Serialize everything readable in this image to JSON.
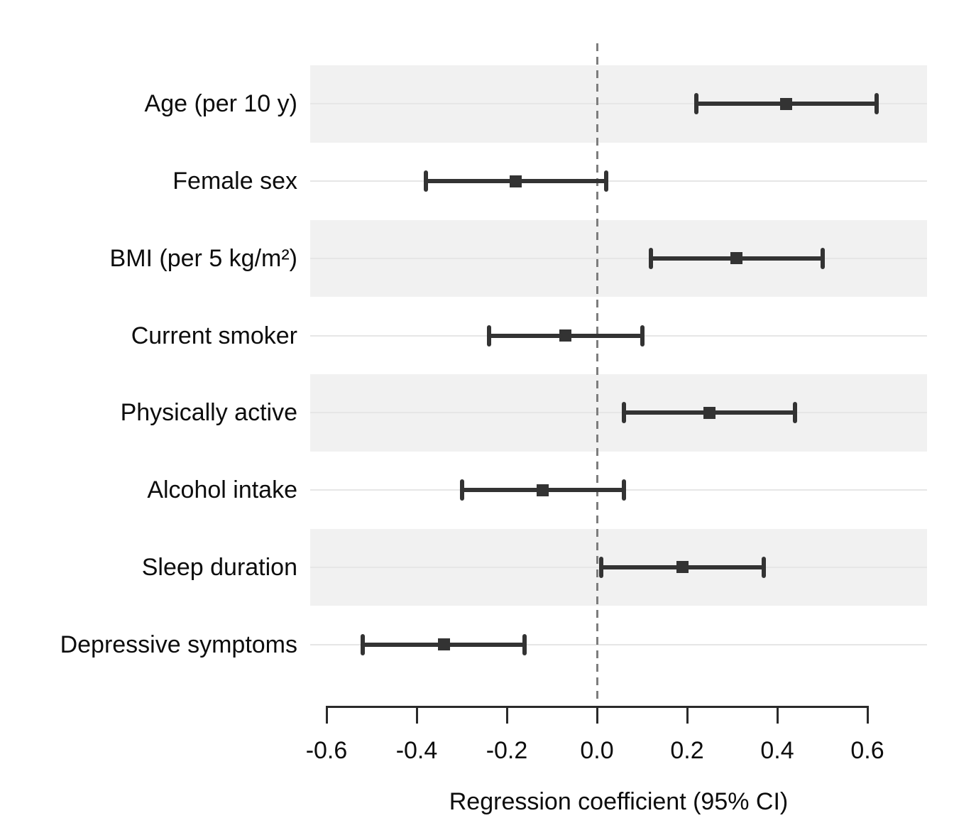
{
  "chart_data": {
    "type": "scatter",
    "variant": "forest_plot",
    "title": "",
    "xlabel": "Regression coefficient (95% CI)",
    "ylabel": "",
    "xlim": [
      -0.64,
      0.73
    ],
    "x_ticks": [
      -0.6,
      -0.4,
      -0.2,
      0.0,
      0.2,
      0.4,
      0.6
    ],
    "x_tick_labels": [
      "-0.6",
      "-0.4",
      "-0.2",
      "0.0",
      "0.2",
      "0.4",
      "0.6"
    ],
    "reference_line_x": 0,
    "grid": "horizontal-row-lines",
    "legend_position": "none",
    "marker_shape": "square",
    "rows": [
      {
        "label": "Age (per 10 y)",
        "estimate": 0.42,
        "ci_lower": 0.22,
        "ci_upper": 0.62,
        "shaded": true
      },
      {
        "label": "Female sex",
        "estimate": -0.18,
        "ci_lower": -0.38,
        "ci_upper": 0.02,
        "shaded": false
      },
      {
        "label": "BMI (per 5 kg/m²)",
        "estimate": 0.31,
        "ci_lower": 0.12,
        "ci_upper": 0.5,
        "shaded": true
      },
      {
        "label": "Current smoker",
        "estimate": -0.07,
        "ci_lower": -0.24,
        "ci_upper": 0.1,
        "shaded": false
      },
      {
        "label": "Physically active",
        "estimate": 0.25,
        "ci_lower": 0.06,
        "ci_upper": 0.44,
        "shaded": true
      },
      {
        "label": "Alcohol intake",
        "estimate": -0.12,
        "ci_lower": -0.3,
        "ci_upper": 0.06,
        "shaded": false
      },
      {
        "label": "Sleep duration",
        "estimate": 0.19,
        "ci_lower": 0.01,
        "ci_upper": 0.37,
        "shaded": true
      },
      {
        "label": "Depressive symptoms",
        "estimate": -0.34,
        "ci_lower": -0.52,
        "ci_upper": -0.16,
        "shaded": false
      }
    ],
    "colors": {
      "marker": "#333333",
      "ci_bar": "#333333",
      "band": "#f1f1f1",
      "row_gridline": "#e6e6e6",
      "reference_line": "#7d7d7d",
      "axis": "#2a2a2a",
      "text": "#0d0d0d",
      "background": "#ffffff"
    }
  }
}
